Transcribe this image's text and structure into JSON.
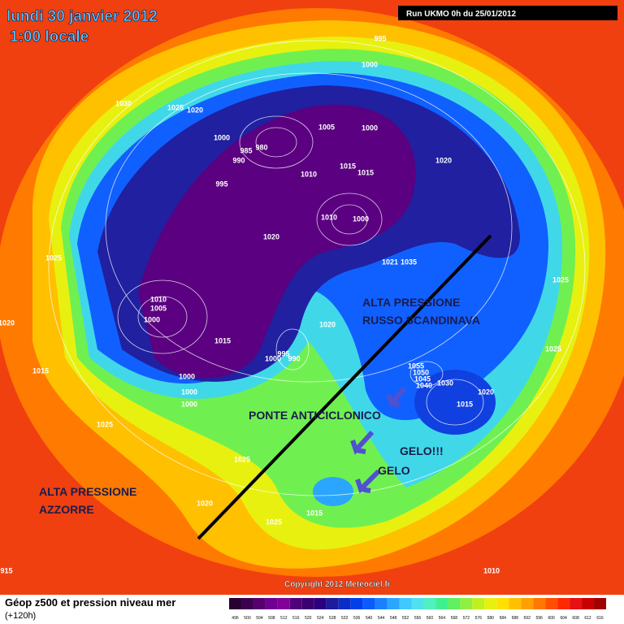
{
  "header": {
    "date": "lundi 30 janvier 2012",
    "time": "1:00 locale",
    "run": "Run UKMO 0h du 25/01/2012"
  },
  "annotations": [
    "ALTA PRESSIONE",
    "RUSSO SCANDINAVA",
    "PONTE ANTICICLONICO",
    "GELO!!!",
    "GELO",
    "ALTA PRESSIONE",
    "AZZORRE"
  ],
  "pressure_labels": [
    995,
    1000,
    1030,
    1025,
    1020,
    1005,
    1000,
    1000,
    985,
    980,
    990,
    1020,
    1015,
    1015,
    1010,
    995,
    1010,
    1000,
    1020,
    1025,
    1021,
    1035,
    1025,
    1010,
    1005,
    1000,
    1020,
    1020,
    1015,
    995,
    1000,
    990,
    1025,
    1015,
    1055,
    1050,
    1045,
    1040,
    1030,
    1000,
    1000,
    1020,
    1015,
    1000,
    1025,
    1025,
    1020,
    1025,
    1015,
    1010,
    915
  ],
  "copyright": "Copyright 2012 Meteociel.fr",
  "footer": {
    "title": "Géop z500 et pression niveau mer",
    "lead": "(+120h)"
  },
  "scale": {
    "values": [
      496,
      500,
      504,
      508,
      512,
      516,
      520,
      524,
      528,
      532,
      536,
      540,
      544,
      548,
      552,
      556,
      560,
      564,
      568,
      572,
      576,
      580,
      584,
      588,
      592,
      596,
      600,
      604,
      608,
      612,
      616
    ],
    "colors": [
      "#2a0030",
      "#3d0050",
      "#55006e",
      "#6e0090",
      "#800099",
      "#500078",
      "#3a0070",
      "#280080",
      "#1c1c9c",
      "#0a2cc8",
      "#0040e8",
      "#0a5cff",
      "#1a80ff",
      "#2aa6ff",
      "#40c8ff",
      "#50e0f0",
      "#50f0c0",
      "#40f090",
      "#60f060",
      "#90f040",
      "#c0f020",
      "#e8f010",
      "#ffe000",
      "#ffc000",
      "#ffa000",
      "#ff7800",
      "#ff5000",
      "#ff2800",
      "#e81010",
      "#c80000",
      "#a00000"
    ]
  }
}
